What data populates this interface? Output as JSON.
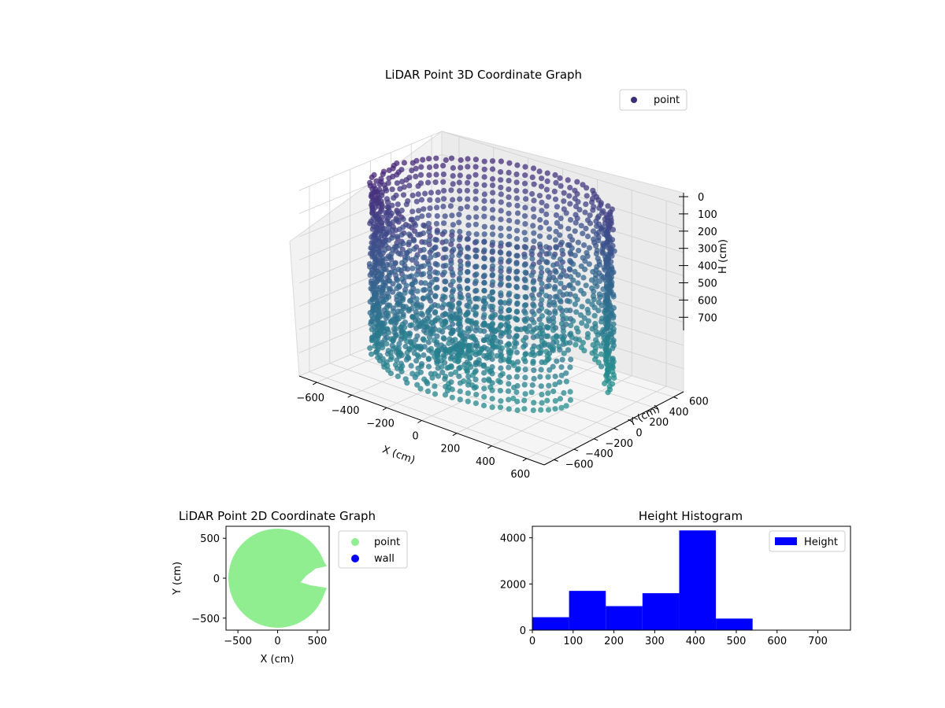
{
  "chart_data": [
    {
      "type": "scatter",
      "title": "LiDAR Point 3D Coordinate Graph",
      "xlabel": "X (cm)",
      "ylabel": "Y (cm)",
      "zlabel": "H (cm)",
      "xlim": [
        -700,
        700
      ],
      "ylim": [
        -700,
        700
      ],
      "zlim": [
        0,
        800
      ],
      "z_inverted": true,
      "x_ticks": [
        "−600",
        "−400",
        "−200",
        "0",
        "200",
        "400",
        "600"
      ],
      "y_ticks": [
        "−600",
        "−400",
        "−200",
        "0",
        "200",
        "400",
        "600"
      ],
      "z_ticks": [
        "0",
        "100",
        "200",
        "300",
        "400",
        "500",
        "600",
        "700"
      ],
      "legend": {
        "entries": [
          {
            "label": "point",
            "color": "#3b2f7a"
          }
        ],
        "placement": "upper-right"
      },
      "colormap": "viridis",
      "grid": true,
      "description_of_shape": "ring wall of points at radius approx 550-650 cm spanning heights 0-700 cm, with interior floor scatter"
    },
    {
      "type": "scatter",
      "title": "LiDAR Point 2D Coordinate Graph",
      "xlabel": "X (cm)",
      "ylabel": "Y (cm)",
      "xlim": [
        -650,
        650
      ],
      "ylim": [
        -650,
        650
      ],
      "x_ticks": [
        "−500",
        "0",
        "500"
      ],
      "y_ticks": [
        "−500",
        "0",
        "500"
      ],
      "legend": {
        "entries": [
          {
            "label": "point",
            "color": "#90ee90"
          },
          {
            "label": "wall",
            "color": "#0000ff"
          }
        ],
        "placement": "outside-right"
      },
      "series": [
        {
          "name": "point",
          "color": "#90ee90",
          "shape": "disc radius ~620 cm with notch cut at right near y=0"
        },
        {
          "name": "wall",
          "color": "#0000ff",
          "values": []
        }
      ]
    },
    {
      "type": "bar",
      "title": "Height Histogram",
      "xlim": [
        0,
        780
      ],
      "ylim": [
        0,
        4500
      ],
      "x_ticks": [
        "0",
        "100",
        "200",
        "300",
        "400",
        "500",
        "600",
        "700"
      ],
      "y_ticks": [
        "0",
        "2000",
        "4000"
      ],
      "bin_edges": [
        0,
        90,
        180,
        270,
        360,
        450,
        540,
        630,
        720,
        780
      ],
      "values": [
        560,
        1700,
        1040,
        1600,
        4320,
        500,
        0,
        0,
        0
      ],
      "color": "#0000ff",
      "legend": {
        "entries": [
          {
            "label": "Height",
            "color": "#0000ff"
          }
        ],
        "placement": "upper-right"
      }
    }
  ]
}
